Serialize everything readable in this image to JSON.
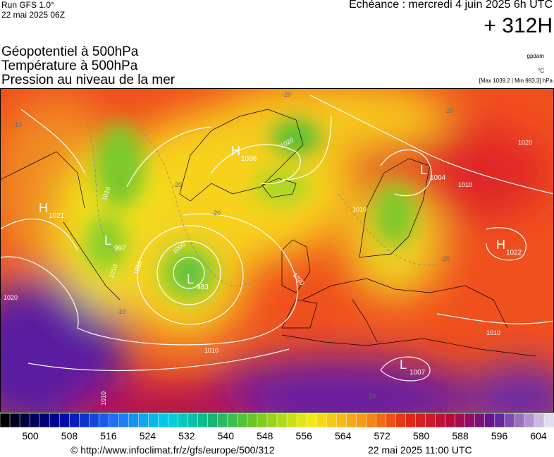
{
  "header": {
    "run": "Run GFS 1.0°",
    "run_date": "22 mai 2025 06Z",
    "forecast": "Echéance : mercredi 4 juin 2025 6h UTC",
    "lead": "+ 312H",
    "titles": [
      "Géopotentiel à 500hPa",
      "Température à 500hPa",
      "Pression au niveau de la mer"
    ],
    "unit_geo": "gpdam",
    "unit_temp": "°C",
    "pressure_range": "[Max 1039.2 | Min 983.3] hPa"
  },
  "map": {
    "centers": [
      {
        "type": "H",
        "value": "1021"
      },
      {
        "type": "L",
        "value": "997"
      },
      {
        "type": "H",
        "value": "1036"
      },
      {
        "type": "L",
        "value": "1004"
      },
      {
        "type": "H",
        "value": "1022"
      },
      {
        "type": "L",
        "value": "983"
      },
      {
        "type": "L",
        "value": "1007"
      }
    ],
    "isobar_labels": [
      "1010",
      "1010",
      "1020",
      "1020",
      "1000",
      "1010",
      "1010",
      "1020",
      "1010",
      "1010",
      "1020",
      "1010",
      "1010"
    ],
    "isotherm_labels": [
      "-10",
      "-20",
      "-20",
      "-20",
      "-20",
      "-20",
      "-10",
      "-10"
    ]
  },
  "colorbar": {
    "labels": [
      "500",
      "508",
      "516",
      "524",
      "532",
      "540",
      "548",
      "556",
      "564",
      "572",
      "580",
      "588",
      "596",
      "604"
    ]
  },
  "footer": {
    "url": "© http://www.infoclimat.fr/z/gfs/europe/500/312",
    "time": "22 mai 2025 11:00 UTC"
  }
}
